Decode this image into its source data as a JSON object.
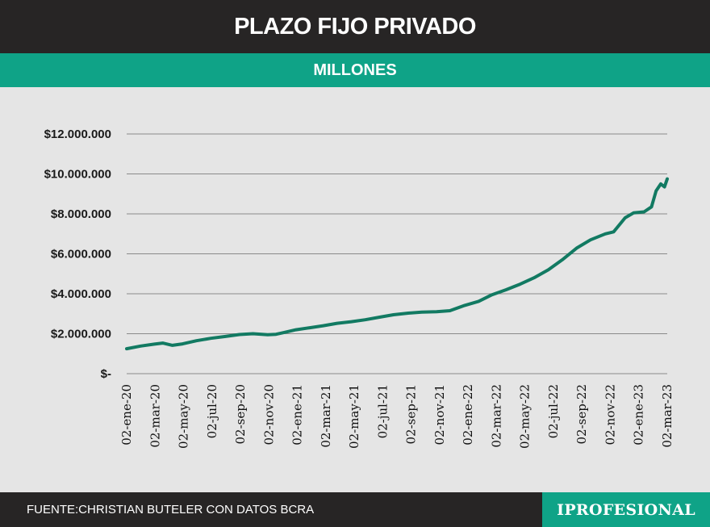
{
  "header": {
    "title": "PLAZO FIJO PRIVADO",
    "subtitle": "MILLONES"
  },
  "footer": {
    "source": "FUENTE:CHRISTIAN BUTELER  CON DATOS BCRA",
    "brand": "IPROFESIONAL"
  },
  "colors": {
    "line": "#127a62",
    "accent": "#0fa387",
    "dark": "#272525",
    "grid": "#8a8a8a"
  },
  "chart_data": {
    "type": "line",
    "title": "PLAZO FIJO PRIVADO",
    "subtitle": "MILLONES",
    "ylim": [
      0,
      12000000
    ],
    "y_ticks": [
      {
        "value": 0,
        "label": "$-"
      },
      {
        "value": 2000000,
        "label": "$2.000.000"
      },
      {
        "value": 4000000,
        "label": "$4.000.000"
      },
      {
        "value": 6000000,
        "label": "$6.000.000"
      },
      {
        "value": 8000000,
        "label": "$8.000.000"
      },
      {
        "value": 10000000,
        "label": "$10.000.000"
      },
      {
        "value": 12000000,
        "label": "$12.000.000"
      }
    ],
    "x_tick_labels": [
      "02-ene-20",
      "02-mar-20",
      "02-may-20",
      "02-jul-20",
      "02-sep-20",
      "02-nov-20",
      "02-ene-21",
      "02-mar-21",
      "02-may-21",
      "02-jul-21",
      "02-sep-21",
      "02-nov-21",
      "02-ene-22",
      "02-mar-22",
      "02-may-22",
      "02-jul-22",
      "02-sep-22",
      "02-nov-22",
      "02-ene-23",
      "02-mar-23"
    ],
    "grid": true,
    "series": [
      {
        "values": [
          {
            "x": "2020-01-02",
            "y": 1250000
          },
          {
            "x": "2020-02-01",
            "y": 1380000
          },
          {
            "x": "2020-03-02",
            "y": 1480000
          },
          {
            "x": "2020-03-20",
            "y": 1530000
          },
          {
            "x": "2020-04-10",
            "y": 1420000
          },
          {
            "x": "2020-05-02",
            "y": 1490000
          },
          {
            "x": "2020-06-01",
            "y": 1650000
          },
          {
            "x": "2020-07-02",
            "y": 1770000
          },
          {
            "x": "2020-08-01",
            "y": 1860000
          },
          {
            "x": "2020-09-02",
            "y": 1960000
          },
          {
            "x": "2020-10-01",
            "y": 2000000
          },
          {
            "x": "2020-11-02",
            "y": 1950000
          },
          {
            "x": "2020-11-20",
            "y": 1970000
          },
          {
            "x": "2020-12-05",
            "y": 2050000
          },
          {
            "x": "2021-01-02",
            "y": 2200000
          },
          {
            "x": "2021-02-01",
            "y": 2300000
          },
          {
            "x": "2021-03-02",
            "y": 2400000
          },
          {
            "x": "2021-04-01",
            "y": 2520000
          },
          {
            "x": "2021-05-02",
            "y": 2600000
          },
          {
            "x": "2021-06-01",
            "y": 2700000
          },
          {
            "x": "2021-07-02",
            "y": 2830000
          },
          {
            "x": "2021-08-01",
            "y": 2950000
          },
          {
            "x": "2021-09-02",
            "y": 3030000
          },
          {
            "x": "2021-10-01",
            "y": 3080000
          },
          {
            "x": "2021-11-02",
            "y": 3100000
          },
          {
            "x": "2021-12-01",
            "y": 3150000
          },
          {
            "x": "2022-01-02",
            "y": 3420000
          },
          {
            "x": "2022-02-01",
            "y": 3620000
          },
          {
            "x": "2022-03-02",
            "y": 3950000
          },
          {
            "x": "2022-04-01",
            "y": 4200000
          },
          {
            "x": "2022-05-02",
            "y": 4480000
          },
          {
            "x": "2022-06-01",
            "y": 4800000
          },
          {
            "x": "2022-07-02",
            "y": 5200000
          },
          {
            "x": "2022-08-01",
            "y": 5700000
          },
          {
            "x": "2022-09-02",
            "y": 6300000
          },
          {
            "x": "2022-10-01",
            "y": 6700000
          },
          {
            "x": "2022-11-02",
            "y": 7000000
          },
          {
            "x": "2022-11-20",
            "y": 7100000
          },
          {
            "x": "2022-12-15",
            "y": 7800000
          },
          {
            "x": "2023-01-02",
            "y": 8050000
          },
          {
            "x": "2023-01-25",
            "y": 8100000
          },
          {
            "x": "2023-02-10",
            "y": 8350000
          },
          {
            "x": "2023-02-20",
            "y": 9150000
          },
          {
            "x": "2023-03-02",
            "y": 9500000
          },
          {
            "x": "2023-03-10",
            "y": 9350000
          },
          {
            "x": "2023-03-16",
            "y": 9750000
          }
        ]
      }
    ]
  }
}
